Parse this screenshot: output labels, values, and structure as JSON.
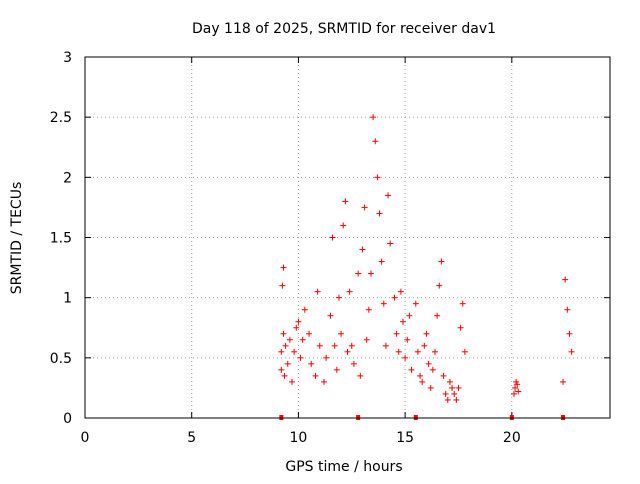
{
  "chart_data": {
    "type": "scatter",
    "title": "Day 118 of 2025, SRMTID for receiver dav1",
    "xlabel": "GPS time / hours",
    "ylabel": "SRMTID / TECUs",
    "xlim": [
      0,
      24.6
    ],
    "ylim": [
      0,
      3
    ],
    "xticks": [
      0,
      5,
      10,
      15,
      20
    ],
    "yticks": [
      0,
      0.5,
      1,
      1.5,
      2,
      2.5,
      3
    ],
    "xtick_labels": [
      "0",
      "5",
      "10",
      "15",
      "20"
    ],
    "ytick_labels": [
      "0",
      "0.5",
      "1",
      "1.5",
      "2",
      "2.5",
      "3"
    ],
    "grid": true,
    "marker": "plus",
    "color": "#ff0000",
    "series": [
      {
        "name": "SRMTID",
        "x": [
          9.2,
          9.2,
          9.25,
          9.3,
          9.3,
          9.35,
          9.4,
          9.5,
          9.6,
          9.7,
          9.8,
          9.9,
          10.0,
          10.1,
          10.2,
          10.3,
          10.5,
          10.6,
          10.8,
          10.9,
          11.0,
          11.2,
          11.3,
          11.5,
          11.6,
          11.7,
          11.8,
          11.9,
          12.0,
          12.1,
          12.2,
          12.3,
          12.4,
          12.5,
          12.6,
          12.8,
          12.9,
          13.0,
          13.1,
          13.2,
          13.3,
          13.4,
          13.5,
          13.6,
          13.7,
          13.8,
          13.9,
          14.0,
          14.1,
          14.2,
          14.3,
          14.5,
          14.6,
          14.7,
          14.8,
          14.9,
          15.0,
          15.1,
          15.2,
          15.3,
          15.5,
          15.6,
          15.7,
          15.8,
          15.9,
          16.0,
          16.1,
          16.2,
          16.3,
          16.4,
          16.5,
          16.6,
          16.7,
          16.8,
          16.9,
          17.0,
          17.1,
          17.2,
          17.3,
          17.4,
          17.5,
          17.6,
          17.7,
          17.8,
          20.1,
          20.15,
          20.2,
          20.25,
          20.3,
          22.4,
          22.5,
          22.6,
          22.7,
          22.8
        ],
        "y": [
          0.4,
          0.55,
          1.1,
          1.25,
          0.7,
          0.35,
          0.6,
          0.45,
          0.65,
          0.3,
          0.55,
          0.75,
          0.8,
          0.5,
          0.65,
          0.9,
          0.7,
          0.45,
          0.35,
          1.05,
          0.6,
          0.3,
          0.5,
          0.85,
          1.5,
          0.6,
          0.4,
          1.0,
          0.7,
          1.6,
          1.8,
          0.55,
          1.05,
          0.6,
          0.45,
          1.2,
          0.35,
          1.4,
          1.75,
          0.65,
          0.9,
          1.2,
          2.5,
          2.3,
          2.0,
          1.7,
          1.3,
          0.95,
          0.6,
          1.85,
          1.45,
          1.0,
          0.7,
          0.55,
          1.05,
          0.8,
          0.5,
          0.65,
          0.85,
          0.4,
          0.95,
          0.55,
          0.35,
          0.3,
          0.6,
          0.7,
          0.45,
          0.25,
          0.4,
          0.55,
          0.85,
          1.1,
          1.3,
          0.35,
          0.2,
          0.15,
          0.3,
          0.25,
          0.2,
          0.15,
          0.25,
          0.75,
          0.95,
          0.55,
          0.2,
          0.25,
          0.3,
          0.28,
          0.22,
          0.3,
          1.15,
          0.9,
          0.7,
          0.55
        ]
      }
    ],
    "rug_x": [
      9.2,
      12.8,
      15.5,
      20.0,
      22.4
    ]
  }
}
